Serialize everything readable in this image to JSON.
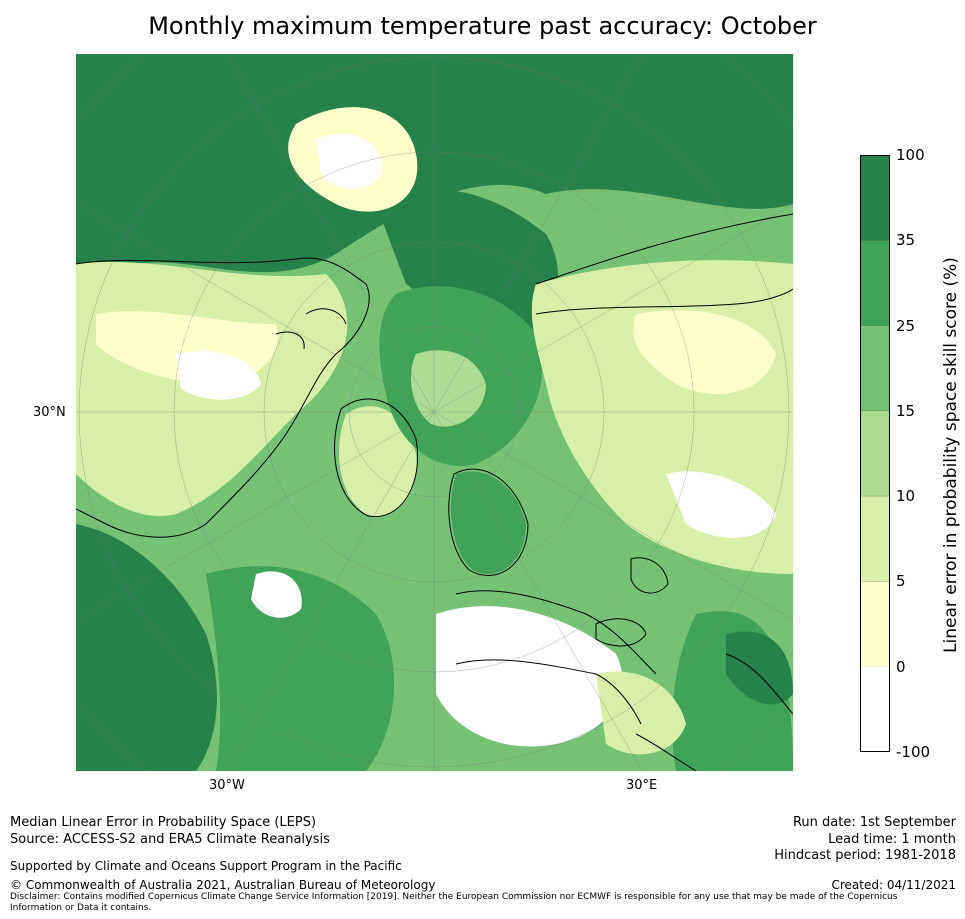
{
  "title": "Monthly maximum temperature past accuracy: October",
  "map": {
    "projection": "north-polar-stereographic",
    "lat_label": "30°N",
    "lon_labels": [
      "30°W",
      "30°E"
    ]
  },
  "colorbar": {
    "label": "Linear error in probability space skill score (%)",
    "ticks": [
      "100",
      "35",
      "25",
      "15",
      "10",
      "5",
      "0",
      "-100"
    ],
    "colors": [
      "#24824a",
      "#3fa45a",
      "#75c277",
      "#abdc92",
      "#d8efa8",
      "#ffffcc",
      "#ffffff"
    ]
  },
  "footer": {
    "left_line1": "Median Linear Error in Probability Space (LEPS)",
    "left_line2": "Source: ACCESS-S2 and ERA5 Climate Reanalysis",
    "support": "Supported by Climate and Oceans Support Program in the Pacific",
    "copyright": "© Commonwealth of Australia 2021, Australian Bureau of Meteorology",
    "disclaimer1": "Disclaimer: Contains modified Copernicus Climate Change Service Information [2019]. Neither the European Commission nor ECMWF is responsible for any use that may be made of the Copernicus",
    "disclaimer2": "Information or Data it contains.",
    "run_date": "Run date: 1st September",
    "lead_time": "Lead time: 1 month",
    "hindcast": "Hindcast period: 1981-2018",
    "created": "Created: 04/11/2021"
  }
}
